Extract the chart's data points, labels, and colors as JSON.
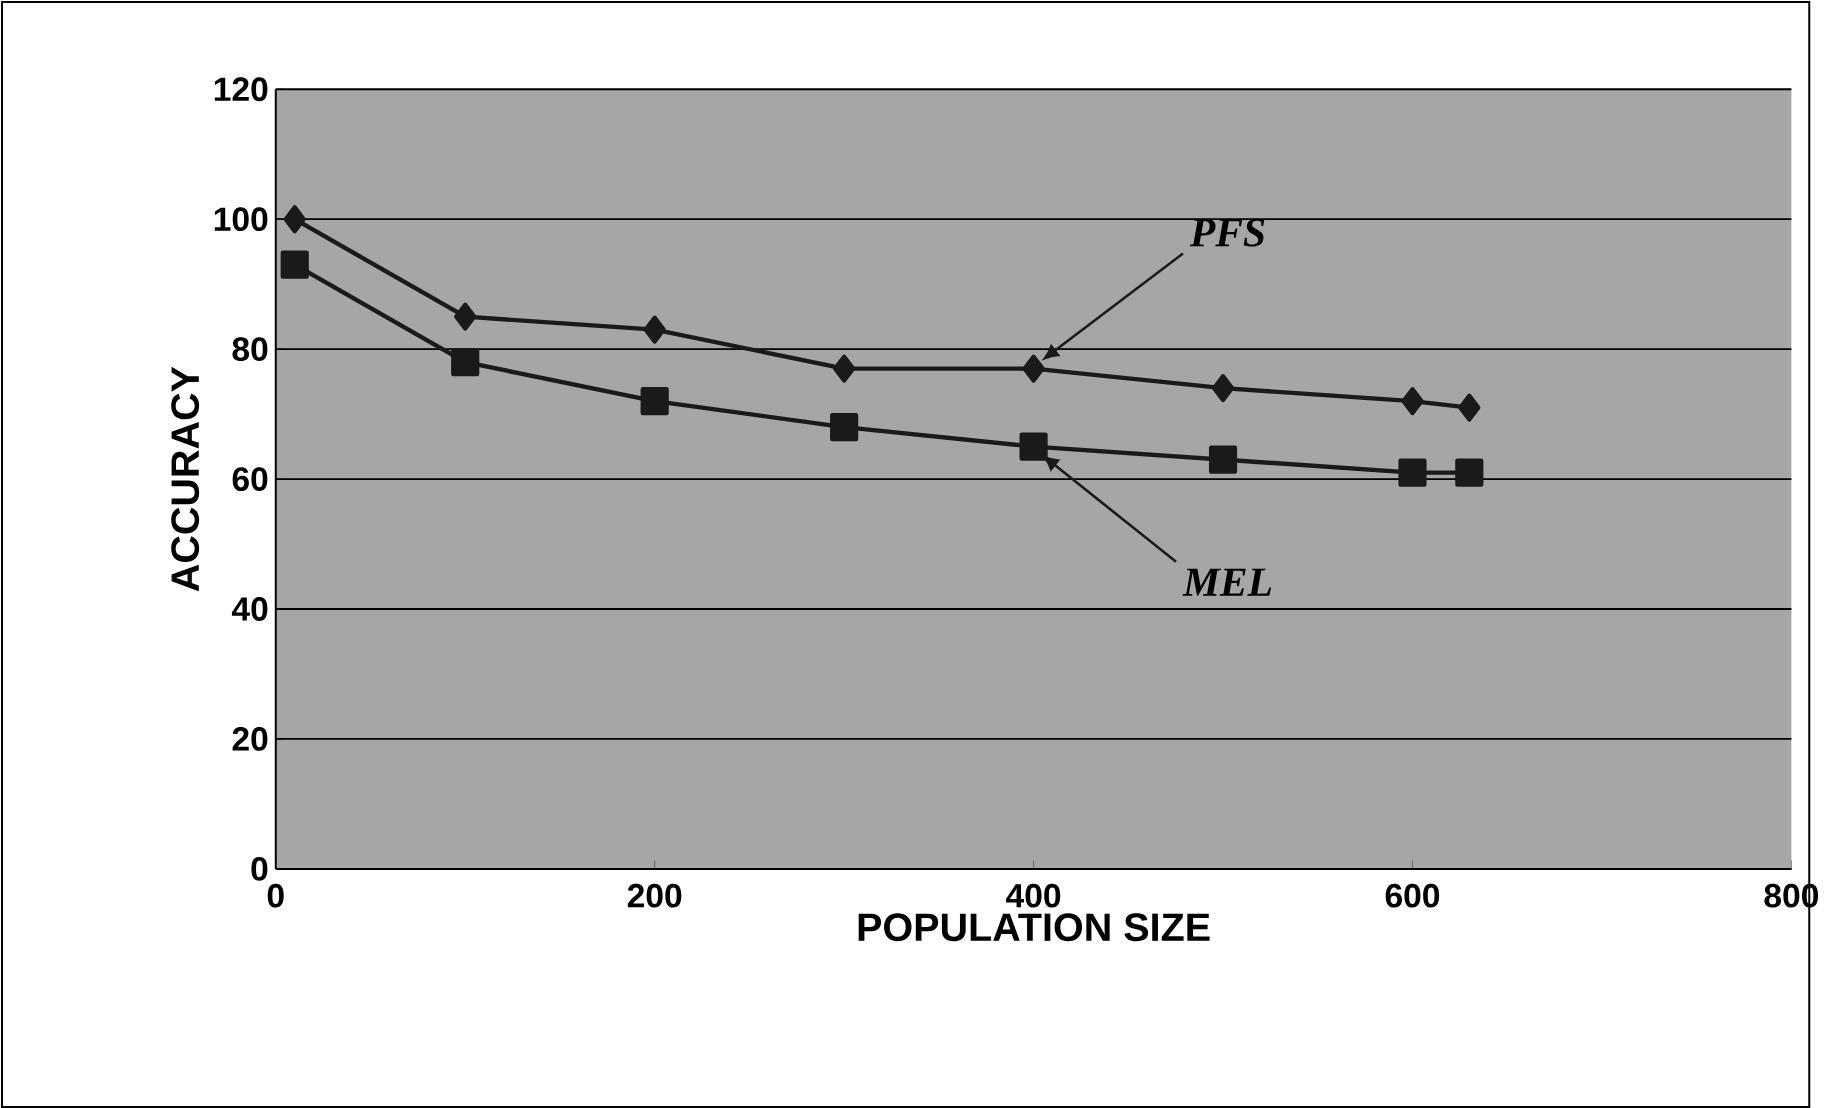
{
  "chart_data": {
    "type": "line",
    "xlabel": "POPULATION SIZE",
    "ylabel": "ACCURACY",
    "x": [
      10,
      100,
      200,
      300,
      400,
      500,
      600,
      630
    ],
    "series": [
      {
        "name": "PFS",
        "color": "#1a1a1a",
        "marker": "diamond",
        "values": [
          100,
          85,
          83,
          77,
          77,
          74,
          72,
          71
        ]
      },
      {
        "name": "MEL",
        "color": "#1a1a1a",
        "marker": "square",
        "values": [
          93,
          78,
          72,
          68,
          65,
          63,
          61,
          61
        ]
      }
    ],
    "xlim": [
      0,
      800
    ],
    "xticks": [
      0,
      200,
      400,
      600,
      800
    ],
    "ylim": [
      0,
      120
    ],
    "yticks": [
      0,
      20,
      40,
      60,
      80,
      100,
      120
    ],
    "grid": "y",
    "line_style": "solid"
  }
}
